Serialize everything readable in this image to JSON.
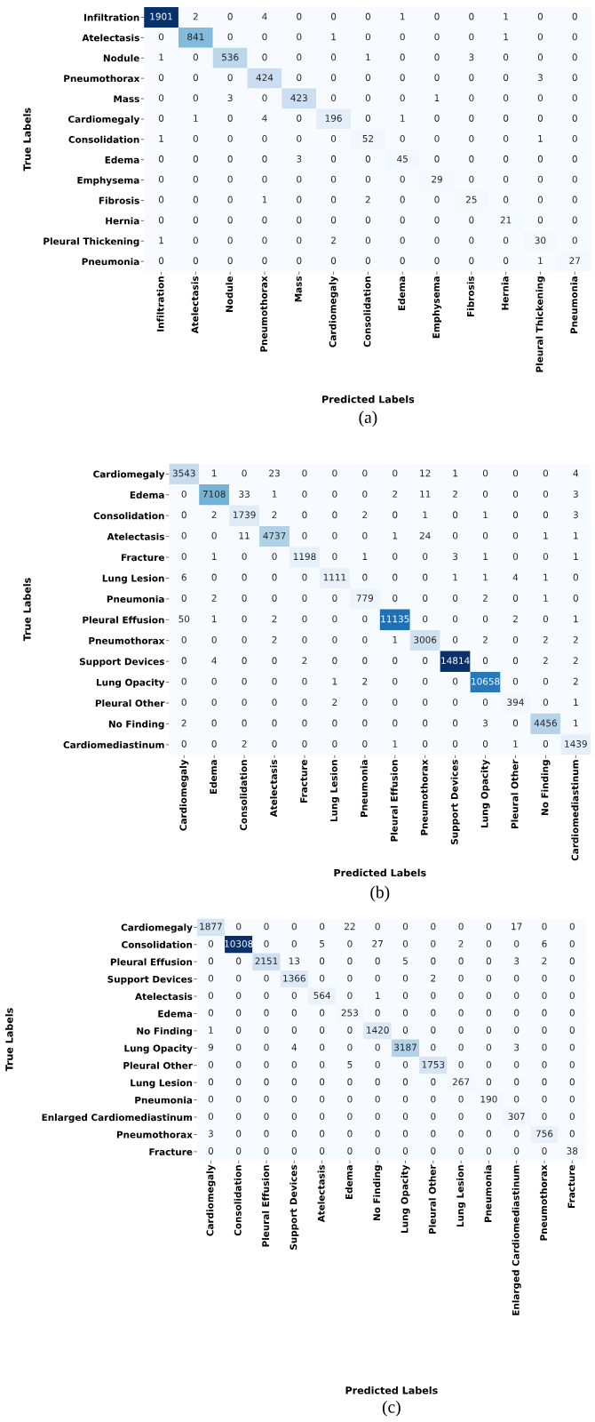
{
  "chart_data": [
    {
      "type": "heatmap",
      "xlabel": "Predicted Labels",
      "ylabel": "True Labels",
      "annotations": [
        "(a)"
      ],
      "data_labels": true,
      "categories": [
        "Infiltration",
        "Atelectasis",
        "Nodule",
        "Pneumothorax",
        "Mass",
        "Cardiomegaly",
        "Consolidation",
        "Edema",
        "Emphysema",
        "Fibrosis",
        "Hernia",
        "Pleural Thickening",
        "Pneumonia"
      ],
      "y_categories": [
        "Infiltration",
        "Atelectasis",
        "Nodule",
        "Pneumothorax",
        "Mass",
        "Cardiomegaly",
        "Consolidation",
        "Edema",
        "Emphysema",
        "Fibrosis",
        "Hernia",
        "Pleural Thickening",
        "Pneumonia"
      ],
      "cells": [
        [
          1901,
          2,
          0,
          4,
          0,
          0,
          0,
          1,
          0,
          0,
          1,
          0,
          0
        ],
        [
          0,
          841,
          0,
          0,
          0,
          1,
          0,
          0,
          0,
          0,
          1,
          0,
          0
        ],
        [
          1,
          0,
          536,
          0,
          0,
          0,
          1,
          0,
          0,
          3,
          0,
          0,
          0
        ],
        [
          0,
          0,
          0,
          424,
          0,
          0,
          0,
          0,
          0,
          0,
          0,
          3,
          0
        ],
        [
          0,
          0,
          3,
          0,
          423,
          0,
          0,
          0,
          1,
          0,
          0,
          0,
          0
        ],
        [
          0,
          1,
          0,
          4,
          0,
          196,
          0,
          1,
          0,
          0,
          0,
          0,
          0
        ],
        [
          1,
          0,
          0,
          0,
          0,
          0,
          52,
          0,
          0,
          0,
          0,
          1,
          0
        ],
        [
          0,
          0,
          0,
          0,
          3,
          0,
          0,
          45,
          0,
          0,
          0,
          0,
          0
        ],
        [
          0,
          0,
          0,
          0,
          0,
          0,
          0,
          0,
          29,
          0,
          0,
          0,
          0
        ],
        [
          0,
          0,
          0,
          1,
          0,
          0,
          2,
          0,
          0,
          25,
          0,
          0,
          0
        ],
        [
          0,
          0,
          0,
          0,
          0,
          0,
          0,
          0,
          0,
          0,
          21,
          0,
          0
        ],
        [
          1,
          0,
          0,
          0,
          0,
          2,
          0,
          0,
          0,
          0,
          0,
          30,
          0
        ],
        [
          0,
          0,
          0,
          0,
          0,
          0,
          0,
          0,
          0,
          0,
          0,
          1,
          27
        ]
      ]
    },
    {
      "type": "heatmap",
      "xlabel": "Predicted Labels",
      "ylabel": "True Labels",
      "annotations": [
        "(b)"
      ],
      "data_labels": true,
      "categories": [
        "Cardiomegaly",
        "Edema",
        "Consolidation",
        "Atelectasis",
        "Fracture",
        "Lung Lesion",
        "Pneumonia",
        "Pleural Effusion",
        "Pneumothorax",
        "Support Devices",
        "Lung Opacity",
        "Pleural Other",
        "No Finding",
        "Cardiomediastinum"
      ],
      "y_categories": [
        "Cardiomegaly",
        "Edema",
        "Consolidation",
        "Atelectasis",
        "Fracture",
        "Lung Lesion",
        "Pneumonia",
        "Pleural Effusion",
        "Pneumothorax",
        "Support Devices",
        "Lung Opacity",
        "Pleural Other",
        "No Finding",
        "Cardiomediastinum"
      ],
      "cells": [
        [
          3543,
          1,
          0,
          23,
          0,
          0,
          0,
          0,
          12,
          1,
          0,
          0,
          0,
          4
        ],
        [
          0,
          7108,
          33,
          1,
          0,
          0,
          0,
          2,
          11,
          2,
          0,
          0,
          0,
          3
        ],
        [
          0,
          2,
          1739,
          2,
          0,
          0,
          2,
          0,
          1,
          0,
          1,
          0,
          0,
          3
        ],
        [
          0,
          0,
          11,
          4737,
          0,
          0,
          0,
          1,
          24,
          0,
          0,
          0,
          1,
          1
        ],
        [
          0,
          1,
          0,
          0,
          1198,
          0,
          1,
          0,
          0,
          3,
          1,
          0,
          0,
          1
        ],
        [
          6,
          0,
          0,
          0,
          0,
          1111,
          0,
          0,
          0,
          1,
          1,
          4,
          1,
          0
        ],
        [
          0,
          2,
          0,
          0,
          0,
          0,
          779,
          0,
          0,
          0,
          2,
          0,
          1,
          0
        ],
        [
          50,
          1,
          0,
          2,
          0,
          0,
          0,
          11135,
          0,
          0,
          0,
          2,
          0,
          1
        ],
        [
          0,
          0,
          0,
          2,
          0,
          0,
          0,
          1,
          3006,
          0,
          2,
          0,
          2,
          2
        ],
        [
          0,
          4,
          0,
          0,
          2,
          0,
          0,
          0,
          0,
          14814,
          0,
          0,
          2,
          2
        ],
        [
          0,
          0,
          0,
          0,
          0,
          1,
          2,
          0,
          0,
          0,
          10658,
          0,
          0,
          2
        ],
        [
          0,
          0,
          0,
          0,
          0,
          2,
          0,
          0,
          0,
          0,
          0,
          394,
          0,
          1
        ],
        [
          2,
          0,
          0,
          0,
          0,
          0,
          0,
          0,
          0,
          0,
          3,
          0,
          4456,
          1
        ],
        [
          0,
          0,
          2,
          0,
          0,
          0,
          0,
          1,
          0,
          0,
          0,
          1,
          0,
          1439
        ]
      ]
    },
    {
      "type": "heatmap",
      "xlabel": "Predicted Labels",
      "ylabel": "True Labels",
      "annotations": [
        "(c)"
      ],
      "data_labels": true,
      "categories": [
        "Cardiomegaly",
        "Consolidation",
        "Pleural Effusion",
        "Support Devices",
        "Atelectasis",
        "Edema",
        "No Finding",
        "Lung Opacity",
        "Pleural Other",
        "Lung Lesion",
        "Pneumonia",
        "Enlarged Cardiomediastinum",
        "Pneumothorax",
        "Fracture"
      ],
      "y_categories": [
        "Cardiomegaly",
        "Consolidation",
        "Pleural Effusion",
        "Support Devices",
        "Atelectasis",
        "Edema",
        "No Finding",
        "Lung Opacity",
        "Pleural Other",
        "Lung Lesion",
        "Pneumonia",
        "Enlarged Cardiomediastinum",
        "Pneumothorax",
        "Fracture"
      ],
      "cells": [
        [
          1877,
          0,
          0,
          0,
          0,
          22,
          0,
          0,
          0,
          0,
          0,
          17,
          0,
          0
        ],
        [
          0,
          10308,
          0,
          0,
          5,
          0,
          27,
          0,
          0,
          2,
          0,
          0,
          6,
          0
        ],
        [
          0,
          0,
          2151,
          13,
          0,
          0,
          0,
          5,
          0,
          0,
          0,
          3,
          2,
          0
        ],
        [
          0,
          0,
          0,
          1366,
          0,
          0,
          0,
          0,
          2,
          0,
          0,
          0,
          0,
          0
        ],
        [
          0,
          0,
          0,
          0,
          564,
          0,
          1,
          0,
          0,
          0,
          0,
          0,
          0,
          0
        ],
        [
          0,
          0,
          0,
          0,
          0,
          253,
          0,
          0,
          0,
          0,
          0,
          0,
          0,
          0
        ],
        [
          1,
          0,
          0,
          0,
          0,
          0,
          1420,
          0,
          0,
          0,
          0,
          0,
          0,
          0
        ],
        [
          9,
          0,
          0,
          4,
          0,
          0,
          0,
          3187,
          0,
          0,
          0,
          3,
          0,
          0
        ],
        [
          0,
          0,
          0,
          0,
          0,
          5,
          0,
          0,
          1753,
          0,
          0,
          0,
          0,
          0
        ],
        [
          0,
          0,
          0,
          0,
          0,
          0,
          0,
          0,
          0,
          267,
          0,
          0,
          0,
          0
        ],
        [
          0,
          0,
          0,
          0,
          0,
          0,
          0,
          0,
          0,
          0,
          190,
          0,
          0,
          0
        ],
        [
          0,
          0,
          0,
          0,
          0,
          0,
          0,
          0,
          0,
          0,
          0,
          307,
          0,
          0
        ],
        [
          3,
          0,
          0,
          0,
          0,
          0,
          0,
          0,
          0,
          0,
          0,
          0,
          756,
          0
        ],
        [
          0,
          0,
          0,
          0,
          0,
          0,
          0,
          0,
          0,
          0,
          0,
          0,
          0,
          38
        ]
      ]
    }
  ]
}
